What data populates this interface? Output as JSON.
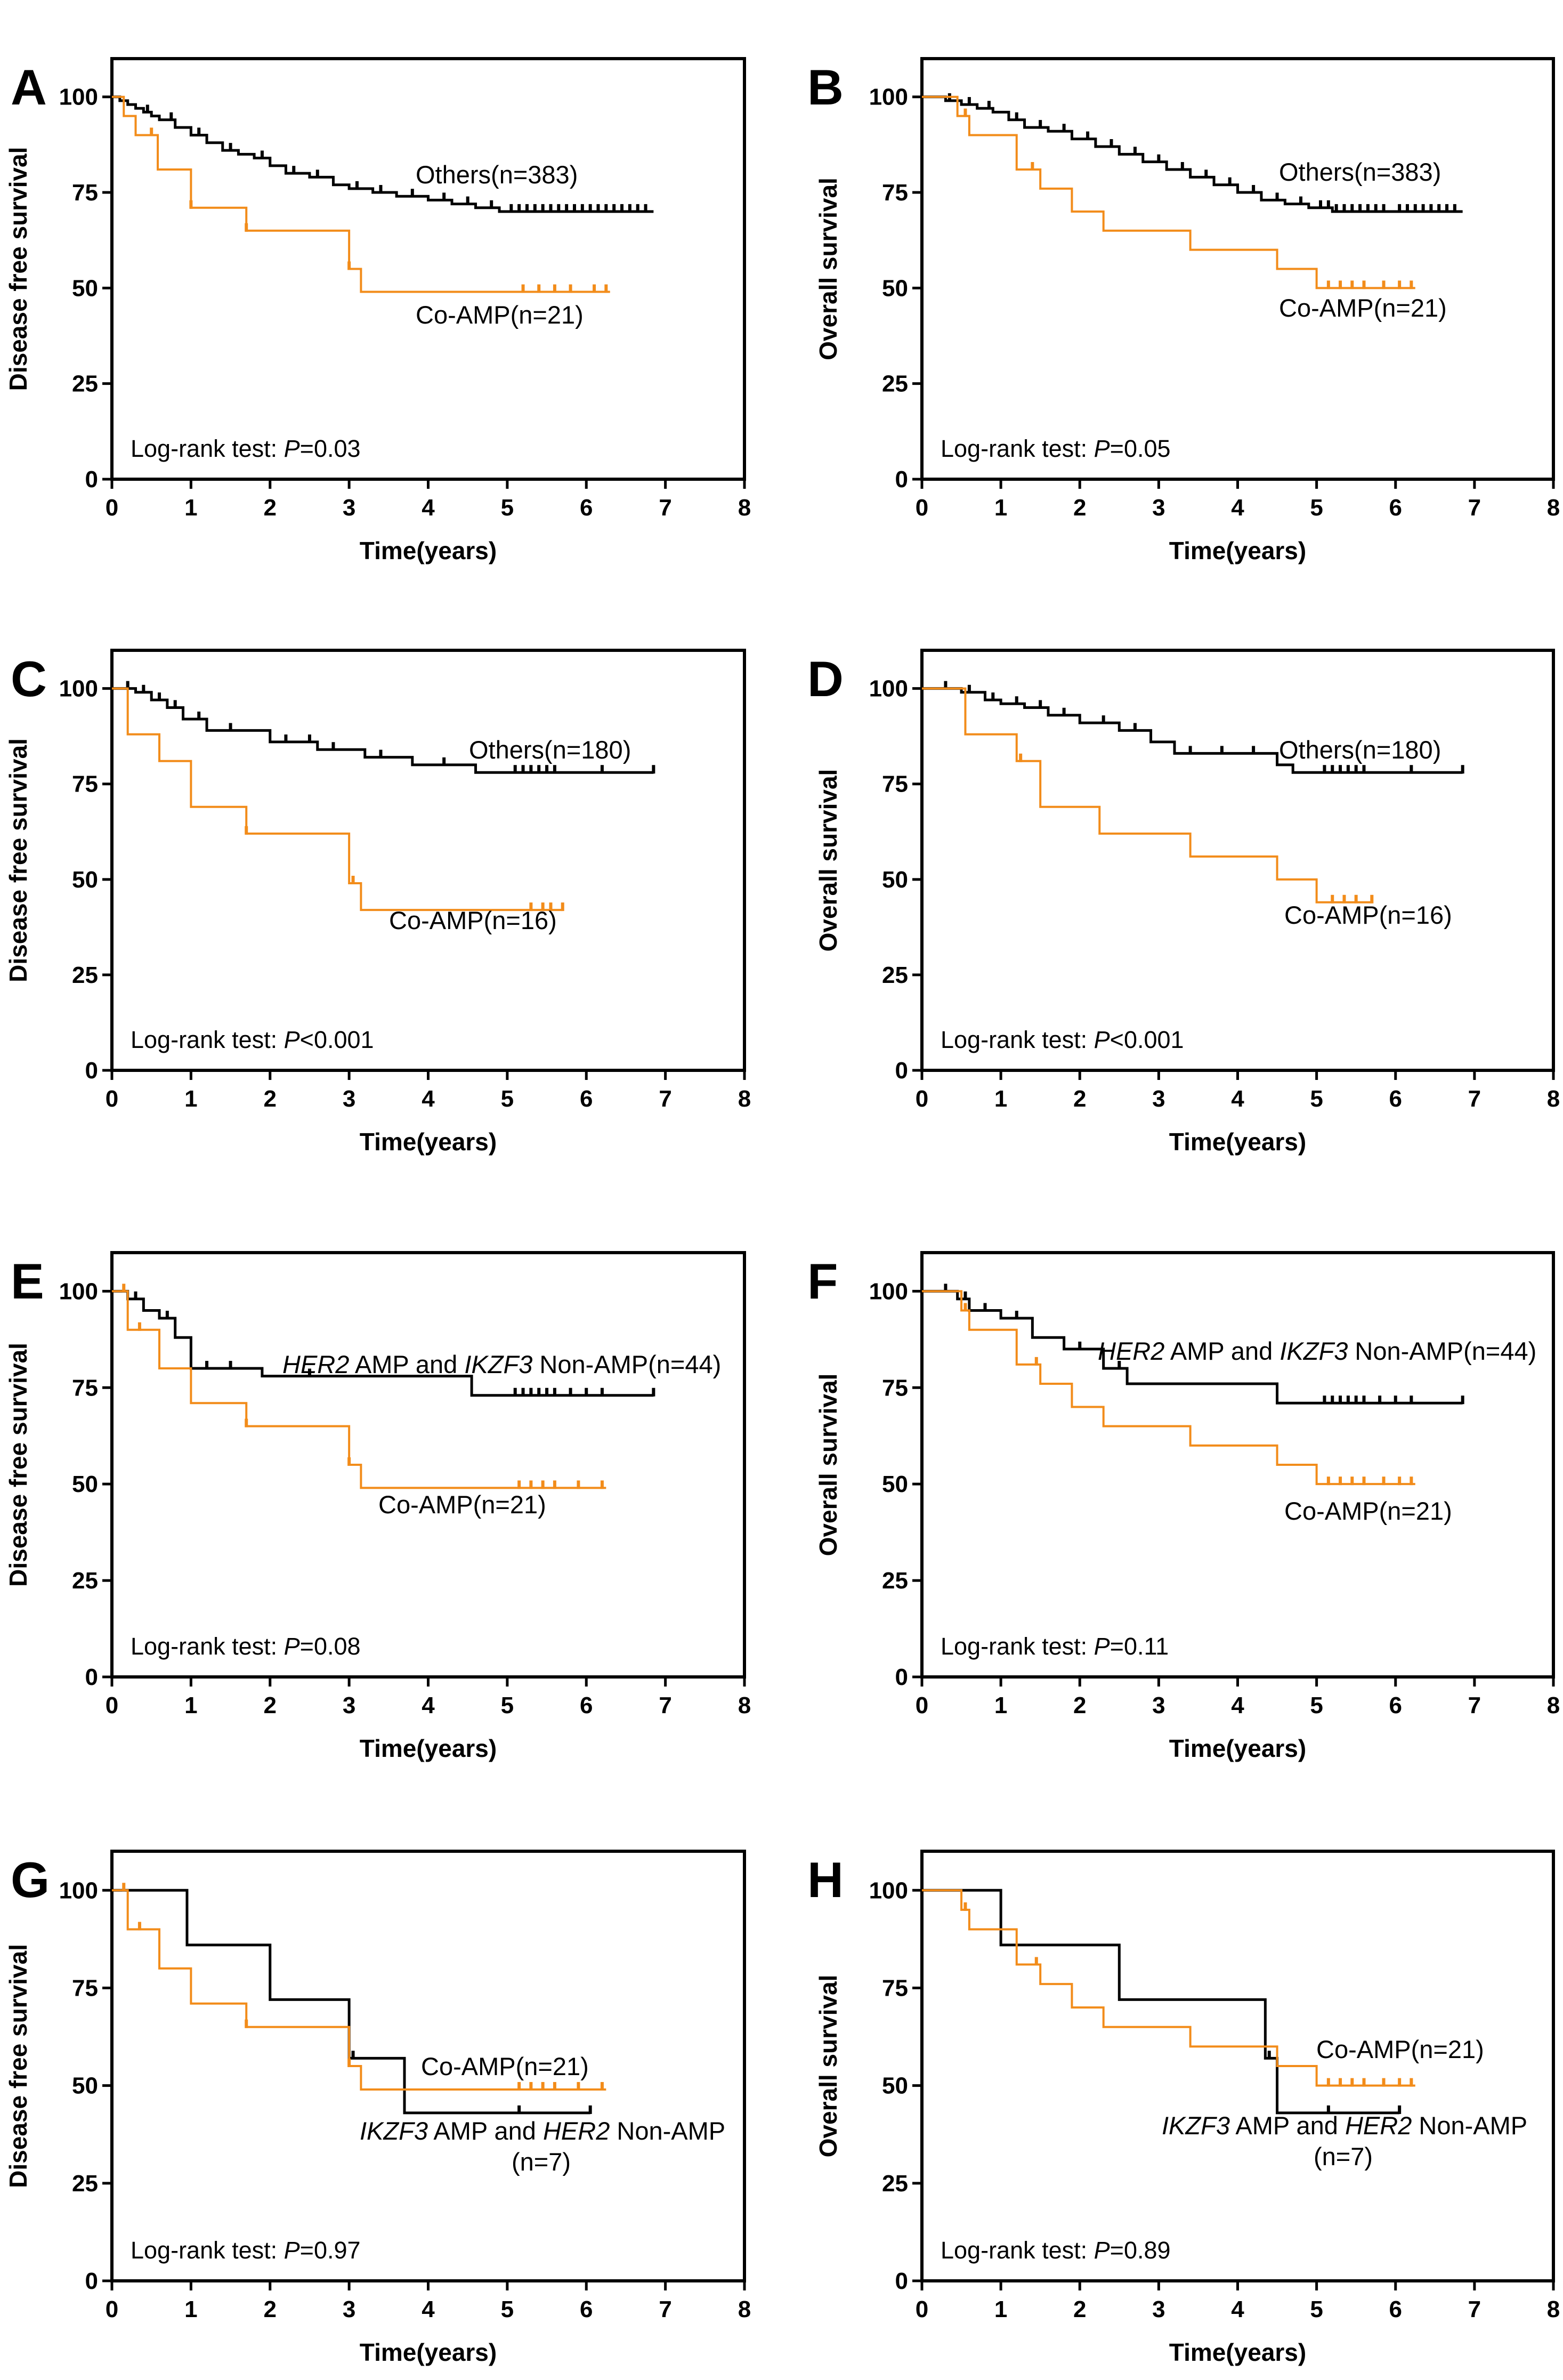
{
  "colors": {
    "others": "#000000",
    "coamp": "#F28C1A"
  },
  "axis_common": {
    "x_ticks": [
      "0",
      "1",
      "2",
      "3",
      "4",
      "5",
      "6",
      "7",
      "8"
    ],
    "y_ticks": [
      "0",
      "25",
      "50",
      "75",
      "100"
    ],
    "xlim": [
      0,
      8
    ],
    "ylim": [
      0,
      110
    ]
  },
  "chart_data": [
    {
      "panel": "A",
      "type": "line",
      "step": true,
      "xlabel": "Time(years)",
      "ylabel": "Disease free survival",
      "logrank": {
        "prefix": "Log-rank test: ",
        "p_symbol": "P",
        "p_value": "=0.03"
      },
      "series": [
        {
          "name": "Others",
          "label_a": "Others(n=383)",
          "color_key": "others",
          "x": [
            0,
            0.1,
            0.2,
            0.3,
            0.4,
            0.5,
            0.6,
            0.8,
            1.0,
            1.2,
            1.4,
            1.6,
            1.8,
            2.0,
            2.2,
            2.5,
            2.8,
            3.0,
            3.3,
            3.6,
            4.0,
            4.3,
            4.6,
            4.9,
            5.2,
            6.85
          ],
          "y": [
            100,
            99,
            98,
            97,
            96,
            95,
            94,
            92,
            90,
            88,
            86,
            85,
            84,
            82,
            80,
            79,
            77,
            76,
            75,
            74,
            73,
            72,
            71,
            70,
            70,
            70
          ],
          "censor_x": [
            0.45,
            0.75,
            1.1,
            1.5,
            1.9,
            2.3,
            2.6,
            3.1,
            3.4,
            3.8,
            4.2,
            4.5,
            4.8,
            5.05,
            5.15,
            5.25,
            5.35,
            5.45,
            5.55,
            5.65,
            5.75,
            5.85,
            5.95,
            6.05,
            6.15,
            6.25,
            6.35,
            6.45,
            6.55,
            6.65,
            6.75
          ]
        },
        {
          "name": "Co-AMP",
          "label_a": "Co-AMP(n=21)",
          "color_key": "coamp",
          "x": [
            0,
            0.15,
            0.3,
            0.58,
            1.0,
            1.7,
            3.0,
            3.15,
            6.3
          ],
          "y": [
            100,
            95,
            90,
            81,
            71,
            65,
            55,
            49,
            49
          ],
          "censor_x": [
            0.5,
            1.0,
            1.7,
            3.0,
            5.2,
            5.4,
            5.6,
            5.8,
            6.1,
            6.25
          ]
        }
      ]
    },
    {
      "panel": "B",
      "type": "line",
      "step": true,
      "xlabel": "Time(years)",
      "ylabel": "Overall survival",
      "logrank": {
        "prefix": "Log-rank test: ",
        "p_symbol": "P",
        "p_value": "=0.05"
      },
      "series": [
        {
          "name": "Others",
          "label_a": "Others(n=383)",
          "color_key": "others",
          "x": [
            0,
            0.3,
            0.5,
            0.7,
            0.9,
            1.1,
            1.3,
            1.6,
            1.9,
            2.2,
            2.5,
            2.8,
            3.1,
            3.4,
            3.7,
            4.0,
            4.3,
            4.6,
            4.9,
            5.2,
            6.85
          ],
          "y": [
            100,
            99,
            98,
            97,
            96,
            94,
            92,
            91,
            89,
            87,
            85,
            83,
            81,
            79,
            77,
            75,
            73,
            72,
            71,
            70,
            70
          ],
          "censor_x": [
            0.35,
            0.6,
            0.85,
            1.2,
            1.5,
            1.8,
            2.1,
            2.4,
            2.7,
            3.0,
            3.3,
            3.6,
            3.9,
            4.2,
            4.5,
            4.8,
            5.05,
            5.15,
            5.25,
            5.35,
            5.45,
            5.55,
            5.65,
            5.75,
            5.85,
            6.05,
            6.15,
            6.25,
            6.35,
            6.45,
            6.55,
            6.65,
            6.75
          ]
        },
        {
          "name": "Co-AMP",
          "label_a": "Co-AMP(n=21)",
          "color_key": "coamp",
          "x": [
            0,
            0.45,
            0.6,
            1.2,
            1.5,
            1.9,
            2.3,
            3.4,
            4.5,
            5.0,
            6.25
          ],
          "y": [
            100,
            95,
            90,
            81,
            76,
            70,
            65,
            60,
            55,
            50,
            50
          ],
          "censor_x": [
            0.55,
            1.4,
            5.15,
            5.3,
            5.45,
            5.6,
            5.85,
            6.05,
            6.2
          ]
        }
      ]
    },
    {
      "panel": "C",
      "type": "line",
      "step": true,
      "xlabel": "Time(years)",
      "ylabel": "Disease free survival",
      "logrank": {
        "prefix": "Log-rank test: ",
        "p_symbol": "P",
        "p_value": "<0.001"
      },
      "series": [
        {
          "name": "Others",
          "label_a": "Others(n=180)",
          "color_key": "others",
          "x": [
            0,
            0.3,
            0.5,
            0.7,
            0.9,
            1.2,
            2.0,
            2.6,
            3.2,
            3.8,
            4.6,
            6.85
          ],
          "y": [
            100,
            99,
            97,
            95,
            92,
            89,
            86,
            84,
            82,
            80,
            78,
            78
          ],
          "censor_x": [
            0.2,
            0.4,
            0.6,
            0.8,
            1.1,
            1.5,
            2.2,
            2.5,
            2.8,
            3.4,
            4.2,
            5.1,
            5.2,
            5.3,
            5.4,
            5.5,
            5.6,
            6.2,
            6.85
          ]
        },
        {
          "name": "Co-AMP",
          "label_a": "Co-AMP(n=16)",
          "color_key": "coamp",
          "x": [
            0,
            0.2,
            0.6,
            1.0,
            1.7,
            3.0,
            3.15,
            5.7
          ],
          "y": [
            100,
            88,
            81,
            69,
            62,
            49,
            42,
            42
          ],
          "censor_x": [
            1.7,
            3.05,
            5.3,
            5.45,
            5.55,
            5.7
          ]
        }
      ]
    },
    {
      "panel": "D",
      "type": "line",
      "step": true,
      "xlabel": "Time(years)",
      "ylabel": "Overall survival",
      "logrank": {
        "prefix": "Log-rank test: ",
        "p_symbol": "P",
        "p_value": "<0.001"
      },
      "series": [
        {
          "name": "Others",
          "label_a": "Others(n=180)",
          "color_key": "others",
          "x": [
            0,
            0.5,
            0.8,
            1.0,
            1.3,
            1.6,
            2.0,
            2.5,
            2.9,
            3.2,
            4.5,
            4.7,
            6.85
          ],
          "y": [
            100,
            99,
            97,
            96,
            95,
            93,
            91,
            89,
            86,
            83,
            80,
            78,
            78
          ],
          "censor_x": [
            0.3,
            0.6,
            0.9,
            1.2,
            1.5,
            1.8,
            2.3,
            2.7,
            3.4,
            3.8,
            4.2,
            5.1,
            5.2,
            5.3,
            5.4,
            5.5,
            5.6,
            6.2,
            6.85
          ]
        },
        {
          "name": "Co-AMP",
          "label_a": "Co-AMP(n=16)",
          "color_key": "coamp",
          "x": [
            0,
            0.55,
            1.2,
            1.5,
            2.25,
            3.4,
            4.5,
            5.0,
            5.7
          ],
          "y": [
            100,
            88,
            81,
            69,
            62,
            56,
            50,
            44,
            44
          ],
          "censor_x": [
            1.25,
            5.2,
            5.35,
            5.5,
            5.7
          ]
        }
      ]
    },
    {
      "panel": "E",
      "type": "line",
      "step": true,
      "xlabel": "Time(years)",
      "ylabel": "Disease free survival",
      "logrank": {
        "prefix": "Log-rank test: ",
        "p_symbol": "P",
        "p_value": "=0.08"
      },
      "series": [
        {
          "name": "HER2 AMP and IKZF3 Non-AMP",
          "label_a": "HER2",
          "label_b": " AMP and ",
          "label_c": "IKZF3",
          "label_d": " Non-AMP(n=44)",
          "color_key": "others",
          "x": [
            0,
            0.2,
            0.4,
            0.6,
            0.8,
            1.0,
            1.9,
            4.55,
            6.85
          ],
          "y": [
            100,
            98,
            95,
            93,
            88,
            80,
            78,
            73,
            73
          ],
          "censor_x": [
            0.3,
            0.7,
            1.2,
            1.5,
            2.5,
            5.1,
            5.2,
            5.3,
            5.4,
            5.5,
            5.6,
            5.8,
            6.0,
            6.2,
            6.85
          ]
        },
        {
          "name": "Co-AMP",
          "label_a": "Co-AMP(n=21)",
          "color_key": "coamp",
          "x": [
            0,
            0.2,
            0.6,
            1.0,
            1.7,
            3.0,
            3.15,
            6.25
          ],
          "y": [
            100,
            90,
            80,
            71,
            65,
            55,
            49,
            49
          ],
          "censor_x": [
            0.15,
            0.35,
            1.7,
            3.0,
            5.15,
            5.3,
            5.45,
            5.6,
            5.9,
            6.2
          ]
        }
      ]
    },
    {
      "panel": "F",
      "type": "line",
      "step": true,
      "xlabel": "Time(years)",
      "ylabel": "Overall survival",
      "logrank": {
        "prefix": "Log-rank test: ",
        "p_symbol": "P",
        "p_value": "=0.11"
      },
      "series": [
        {
          "name": "HER2 AMP and IKZF3 Non-AMP",
          "label_a": "HER2",
          "label_b": " AMP and ",
          "label_c": "IKZF3",
          "label_d": " Non-AMP(n=44)",
          "color_key": "others",
          "x": [
            0,
            0.45,
            0.6,
            1.0,
            1.4,
            1.8,
            2.3,
            2.6,
            4.5,
            6.85
          ],
          "y": [
            100,
            98,
            95,
            93,
            88,
            85,
            80,
            76,
            71,
            71
          ],
          "censor_x": [
            0.3,
            0.55,
            0.8,
            1.2,
            2.0,
            2.5,
            5.1,
            5.2,
            5.3,
            5.4,
            5.5,
            5.6,
            5.8,
            6.0,
            6.2,
            6.85
          ]
        },
        {
          "name": "Co-AMP",
          "label_a": "Co-AMP(n=21)",
          "color_key": "coamp",
          "x": [
            0,
            0.5,
            0.6,
            1.2,
            1.5,
            1.9,
            2.3,
            3.4,
            4.5,
            5.0,
            6.25
          ],
          "y": [
            100,
            95,
            90,
            81,
            76,
            70,
            65,
            60,
            55,
            50,
            50
          ],
          "censor_x": [
            0.55,
            1.45,
            5.15,
            5.3,
            5.45,
            5.6,
            5.85,
            6.05,
            6.2
          ]
        }
      ]
    },
    {
      "panel": "G",
      "type": "line",
      "step": true,
      "xlabel": "Time(years)",
      "ylabel": "Disease free survival",
      "logrank": {
        "prefix": "Log-rank test: ",
        "p_symbol": "P",
        "p_value": "=0.97"
      },
      "series": [
        {
          "name": "IKZF3 AMP and HER2 Non-AMP",
          "label_a": "IKZF3",
          "label_b": " AMP and ",
          "label_c": "HER2",
          "label_d": " Non-AMP",
          "label_e": "(n=7)",
          "color_key": "others",
          "x": [
            0,
            0.95,
            2.0,
            3.0,
            3.7,
            6.05
          ],
          "y": [
            100,
            86,
            72,
            57,
            43,
            43
          ],
          "censor_x": [
            3.05,
            5.15,
            6.05
          ]
        },
        {
          "name": "Co-AMP",
          "label_a": "Co-AMP(n=21)",
          "color_key": "coamp",
          "x": [
            0,
            0.2,
            0.6,
            1.0,
            1.7,
            3.0,
            3.15,
            6.25
          ],
          "y": [
            100,
            90,
            80,
            71,
            65,
            55,
            49,
            49
          ],
          "censor_x": [
            0.15,
            0.35,
            1.7,
            3.0,
            5.15,
            5.3,
            5.45,
            5.6,
            5.9,
            6.2
          ]
        }
      ]
    },
    {
      "panel": "H",
      "type": "line",
      "step": true,
      "xlabel": "Time(years)",
      "ylabel": "Overall survival",
      "logrank": {
        "prefix": "Log-rank test: ",
        "p_symbol": "P",
        "p_value": "=0.89"
      },
      "series": [
        {
          "name": "IKZF3 AMP and HER2 Non-AMP",
          "label_a": "IKZF3",
          "label_b": " AMP and ",
          "label_c": "HER2",
          "label_d": " Non-AMP",
          "label_e": "(n=7)",
          "color_key": "others",
          "x": [
            0,
            1.0,
            2.5,
            4.35,
            4.5,
            6.05
          ],
          "y": [
            100,
            86,
            72,
            57,
            43,
            43
          ],
          "censor_x": [
            4.4,
            5.15,
            6.05
          ]
        },
        {
          "name": "Co-AMP",
          "label_a": "Co-AMP(n=21)",
          "color_key": "coamp",
          "x": [
            0,
            0.5,
            0.6,
            1.2,
            1.5,
            1.9,
            2.3,
            3.4,
            4.5,
            5.0,
            6.25
          ],
          "y": [
            100,
            95,
            90,
            81,
            76,
            70,
            65,
            60,
            55,
            50,
            50
          ],
          "censor_x": [
            0.55,
            1.45,
            5.15,
            5.3,
            5.45,
            5.6,
            5.85,
            6.05,
            6.2
          ]
        }
      ]
    }
  ]
}
